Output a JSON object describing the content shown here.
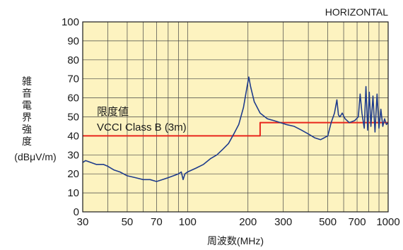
{
  "chart_data": {
    "type": "line",
    "corner_label": "HORIZONTAL",
    "ylabel_chars": [
      "雑",
      "音",
      "電",
      "界",
      "強",
      "度"
    ],
    "yunit": "(dBμV/m)",
    "xlabel": "周波数(MHz)",
    "x_scale": "log",
    "xlim": [
      30,
      1000
    ],
    "ylim": [
      0,
      100
    ],
    "y_ticks": [
      0,
      10,
      20,
      30,
      40,
      50,
      60,
      70,
      80,
      90,
      100
    ],
    "x_tick_labels": [
      {
        "value": 30,
        "label": "30"
      },
      {
        "value": 50,
        "label": "50"
      },
      {
        "value": 70,
        "label": "70"
      },
      {
        "value": 100,
        "label": "100"
      },
      {
        "value": 200,
        "label": "200"
      },
      {
        "value": 300,
        "label": "300"
      },
      {
        "value": 500,
        "label": "500"
      },
      {
        "value": 700,
        "label": "700"
      },
      {
        "value": 1000,
        "label": "1000"
      }
    ],
    "x_gridlines": [
      30,
      40,
      50,
      60,
      70,
      80,
      90,
      100,
      200,
      300,
      400,
      500,
      600,
      700,
      800,
      900,
      1000
    ],
    "grid": true,
    "colors": {
      "background": "#fdf3c0",
      "grid": "#444444",
      "limit": "#e8261c",
      "measurement": "#1f3c8c"
    },
    "annotation": {
      "line1": "限度値",
      "line2": "VCCI Class B (3m)"
    },
    "series": [
      {
        "role": "limit",
        "points": [
          [
            30,
            40
          ],
          [
            230,
            40
          ],
          [
            230,
            47
          ],
          [
            1000,
            47
          ]
        ]
      },
      {
        "role": "measurement",
        "points": [
          [
            30,
            26
          ],
          [
            31,
            27
          ],
          [
            33,
            26
          ],
          [
            35,
            25
          ],
          [
            38,
            25
          ],
          [
            40,
            24
          ],
          [
            43,
            22
          ],
          [
            46,
            21
          ],
          [
            50,
            19
          ],
          [
            55,
            18
          ],
          [
            60,
            17
          ],
          [
            65,
            17
          ],
          [
            70,
            16
          ],
          [
            75,
            17
          ],
          [
            80,
            18
          ],
          [
            85,
            19
          ],
          [
            90,
            20
          ],
          [
            93,
            21
          ],
          [
            95,
            17
          ],
          [
            97,
            20
          ],
          [
            100,
            21
          ],
          [
            110,
            23
          ],
          [
            120,
            25
          ],
          [
            130,
            28
          ],
          [
            140,
            30
          ],
          [
            150,
            33
          ],
          [
            160,
            36
          ],
          [
            170,
            41
          ],
          [
            180,
            46
          ],
          [
            190,
            55
          ],
          [
            198,
            66
          ],
          [
            202,
            71
          ],
          [
            206,
            66
          ],
          [
            215,
            58
          ],
          [
            230,
            52
          ],
          [
            250,
            49
          ],
          [
            270,
            48
          ],
          [
            290,
            47
          ],
          [
            310,
            46
          ],
          [
            340,
            45
          ],
          [
            370,
            43
          ],
          [
            400,
            41
          ],
          [
            430,
            39
          ],
          [
            460,
            38
          ],
          [
            480,
            39
          ],
          [
            500,
            40
          ],
          [
            520,
            47
          ],
          [
            540,
            52
          ],
          [
            555,
            59
          ],
          [
            565,
            51
          ],
          [
            575,
            50
          ],
          [
            590,
            52
          ],
          [
            610,
            49
          ],
          [
            640,
            47
          ],
          [
            680,
            48
          ],
          [
            710,
            50
          ],
          [
            725,
            62
          ],
          [
            740,
            52
          ],
          [
            760,
            44
          ],
          [
            775,
            66
          ],
          [
            790,
            43
          ],
          [
            805,
            63
          ],
          [
            820,
            45
          ],
          [
            840,
            61
          ],
          [
            860,
            42
          ],
          [
            880,
            62
          ],
          [
            900,
            44
          ],
          [
            920,
            54
          ],
          [
            940,
            45
          ],
          [
            960,
            49
          ],
          [
            980,
            46
          ],
          [
            1000,
            47
          ]
        ]
      }
    ]
  }
}
